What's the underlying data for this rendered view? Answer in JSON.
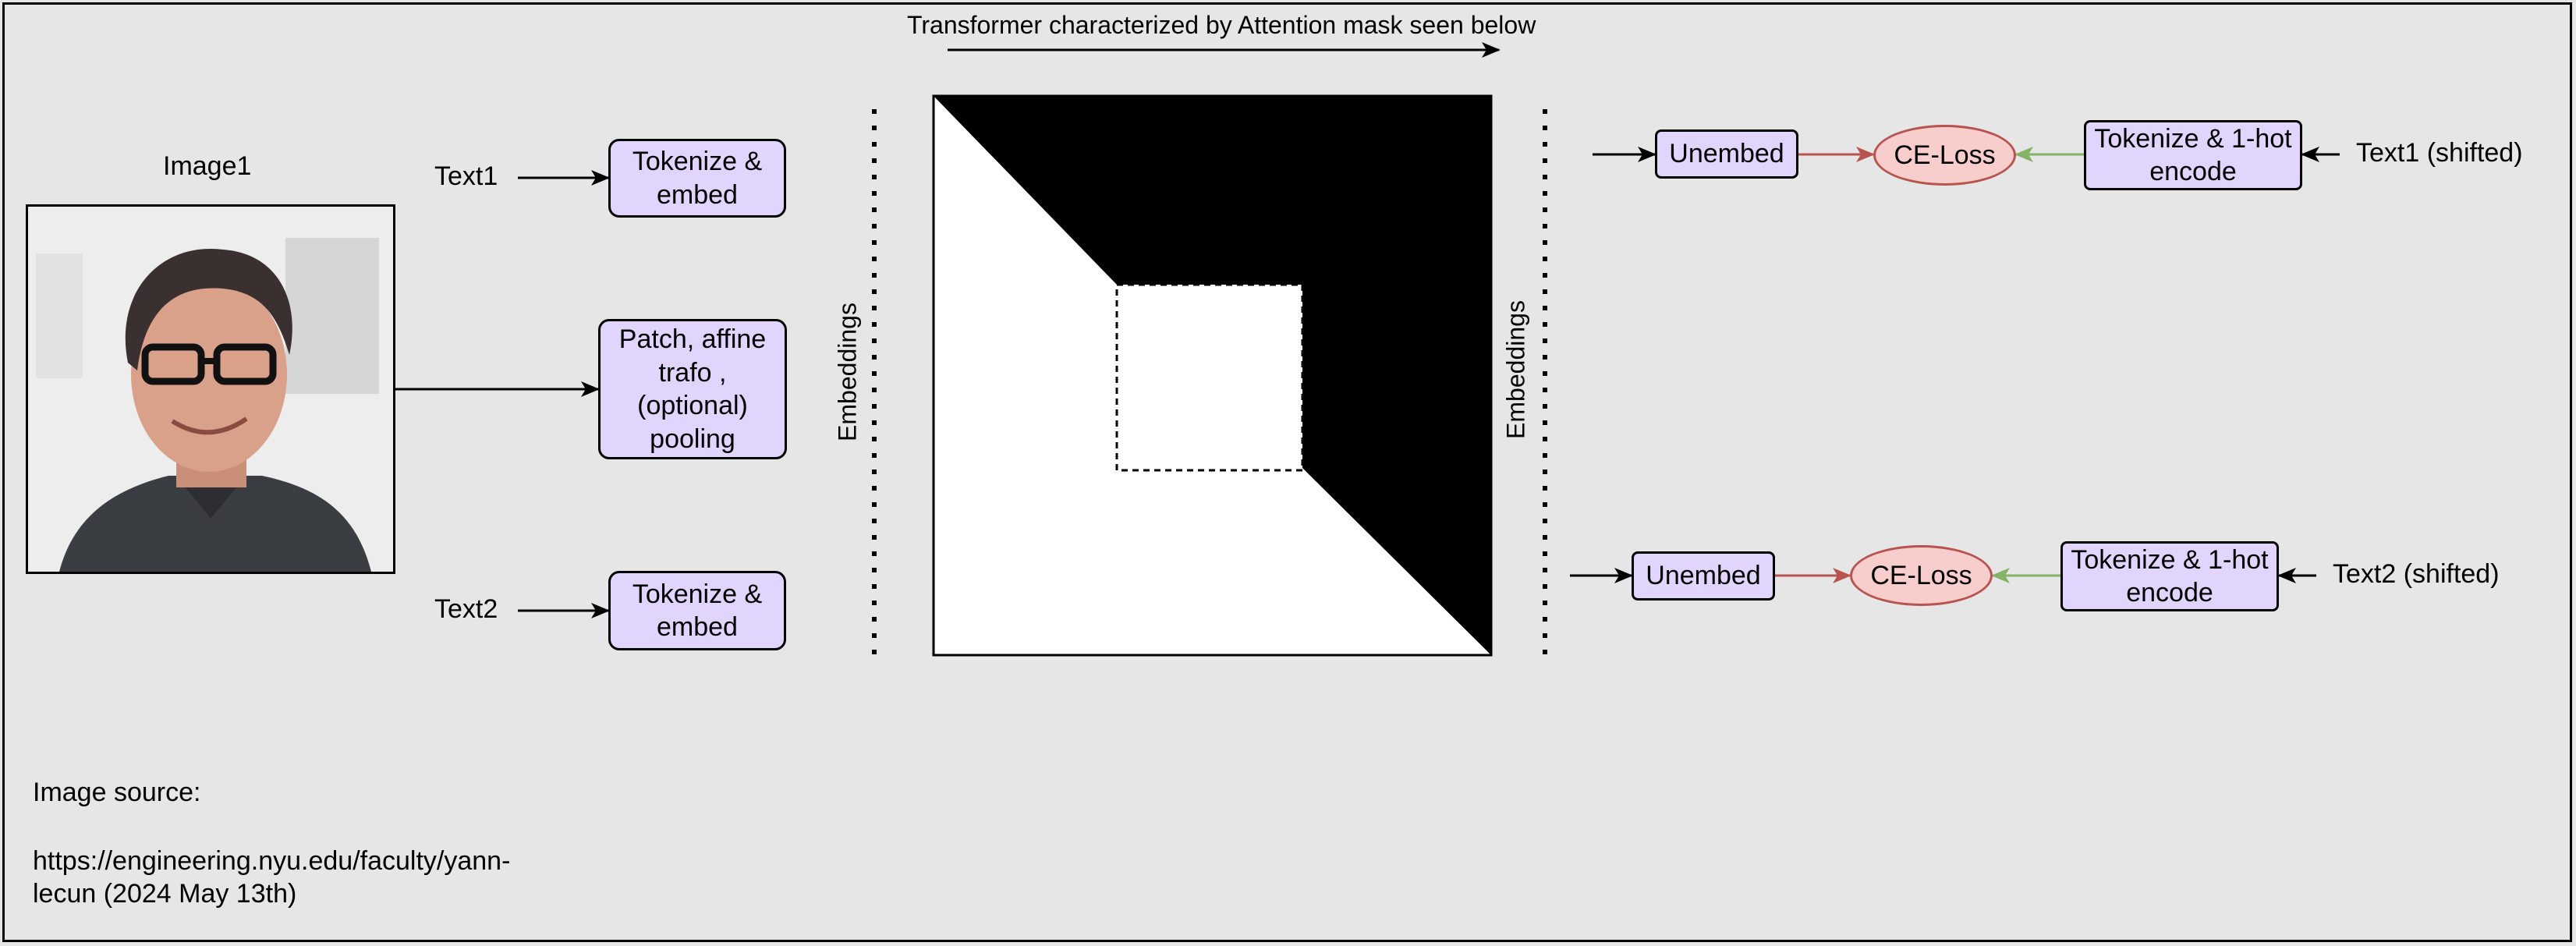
{
  "title": "Transformer characterized by Attention mask seen below",
  "image": {
    "label": "Image1"
  },
  "inputs": {
    "text1_label": "Text1",
    "text2_label": "Text2",
    "tokenize_embed_1": "Tokenize &\nembed",
    "tokenize_embed_2": "Tokenize &\nembed",
    "patch": "Patch, affine\ntrafo ,\n(optional)\npooling"
  },
  "embeddings_left": "Embeddings",
  "embeddings_right": "Embeddings",
  "outputs": {
    "row1": {
      "unembed": "Unembed",
      "loss": "CE-Loss",
      "tokenize": "Tokenize & 1-hot\nencode",
      "target": "Text1 (shifted)"
    },
    "row2": {
      "unembed": "Unembed",
      "loss": "CE-Loss",
      "tokenize": "Tokenize & 1-hot\nencode",
      "target": "Text2 (shifted)"
    }
  },
  "source": {
    "heading": "Image source:",
    "line1": "https://engineering.nyu.edu/faculty/yann-",
    "line2": "lecun (2024 May 13th)"
  },
  "colors": {
    "box_fill": "#e1d5fe",
    "loss_fill": "#f8cecc",
    "loss_stroke": "#b85450",
    "red_arrow": "#b85450",
    "green_arrow": "#82b366"
  }
}
